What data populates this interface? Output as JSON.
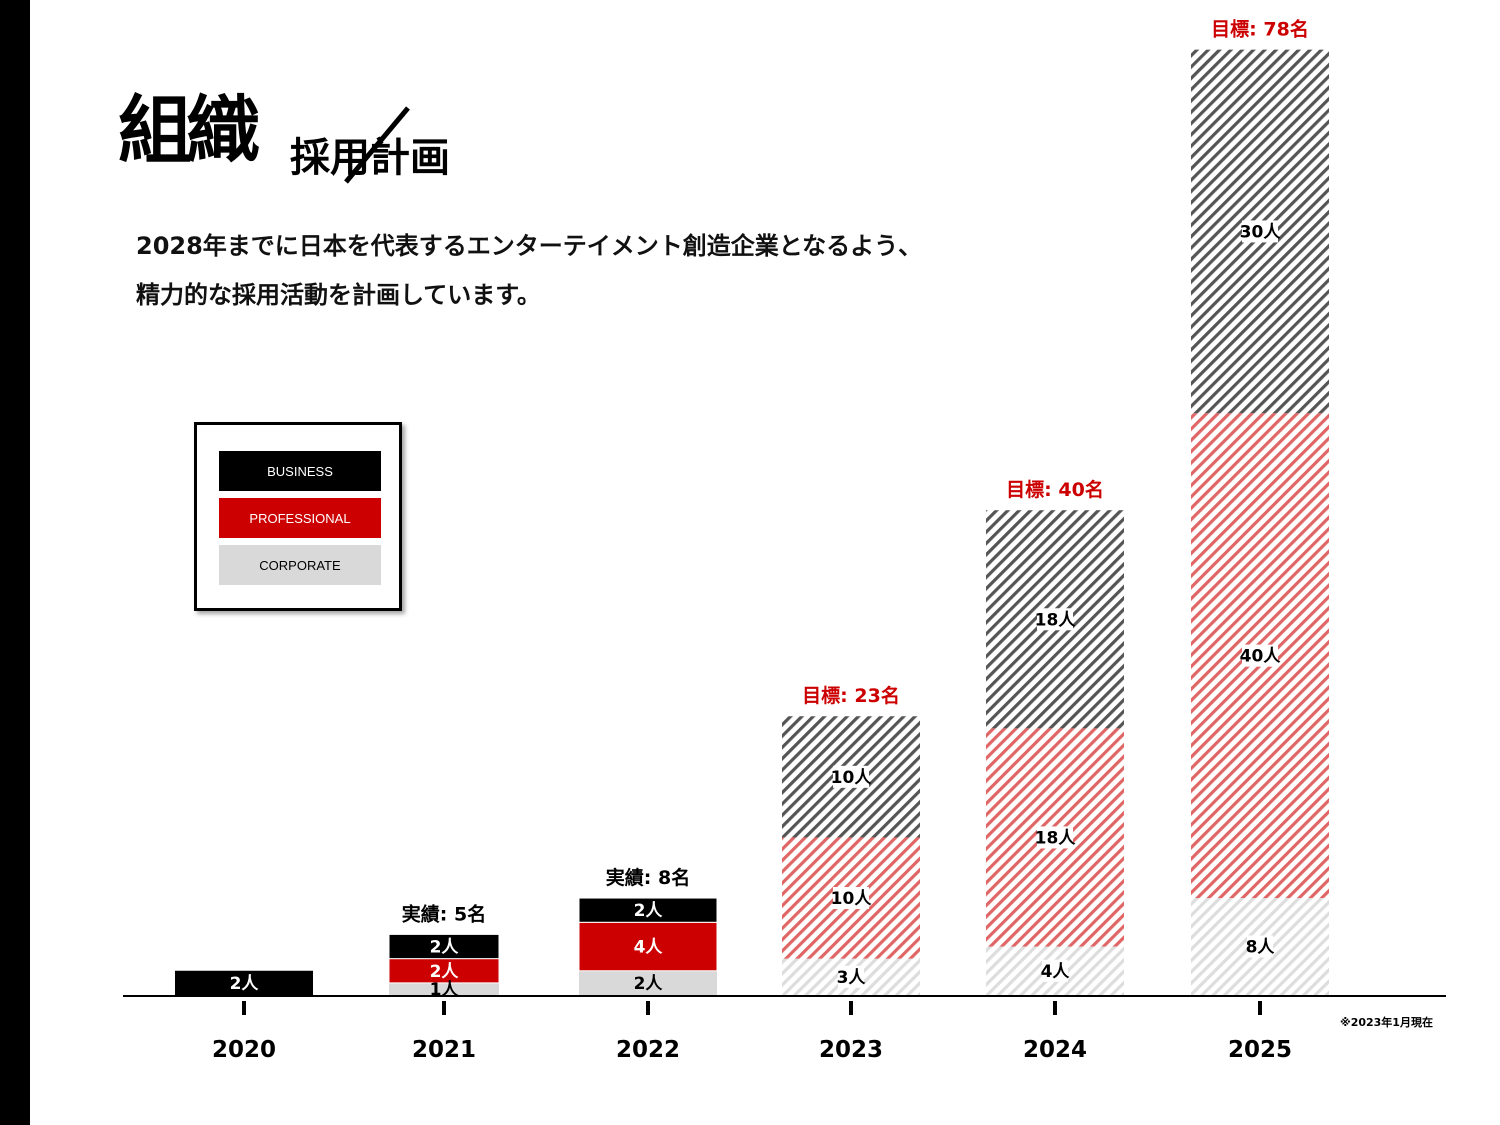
{
  "title": {
    "main": "組織",
    "sub": "採用計画"
  },
  "lead": [
    "2028年までに日本を代表するエンターテイメント創造企業となるよう、",
    "精力的な採用活動を計画しています。"
  ],
  "note": "※2023年1月現在",
  "colors": {
    "business": "#000000",
    "professional": "#cc0000",
    "corporate": "#d9d9d9",
    "goal_text": "#cc0000"
  },
  "chart_data": {
    "type": "bar",
    "stacked": true,
    "categories": [
      "2020",
      "2021",
      "2022",
      "2023",
      "2024",
      "2025"
    ],
    "series": [
      {
        "name": "CORPORATE",
        "values": [
          0,
          1,
          2,
          3,
          4,
          8
        ],
        "labels": [
          "",
          "1人",
          "2人",
          "3人",
          "4人",
          "8人"
        ]
      },
      {
        "name": "PROFESSIONAL",
        "values": [
          0,
          2,
          4,
          10,
          18,
          40
        ],
        "labels": [
          "",
          "2人",
          "4人",
          "10人",
          "18人",
          "40人"
        ]
      },
      {
        "name": "BUSINESS",
        "values": [
          2,
          2,
          2,
          10,
          18,
          30
        ],
        "labels": [
          "2人",
          "2人",
          "2人",
          "10人",
          "18人",
          "30人"
        ]
      }
    ],
    "hatched_categories": [
      "2023",
      "2024",
      "2025"
    ],
    "totals": [
      "",
      "実績: 5名",
      "実績: 8名",
      "目標: 23名",
      "目標: 40名",
      "目標: 78名"
    ],
    "legend": [
      "BUSINESS",
      "PROFESSIONAL",
      "CORPORATE"
    ],
    "legend_position": "left",
    "ylim": [
      0,
      80
    ],
    "grid": false
  }
}
